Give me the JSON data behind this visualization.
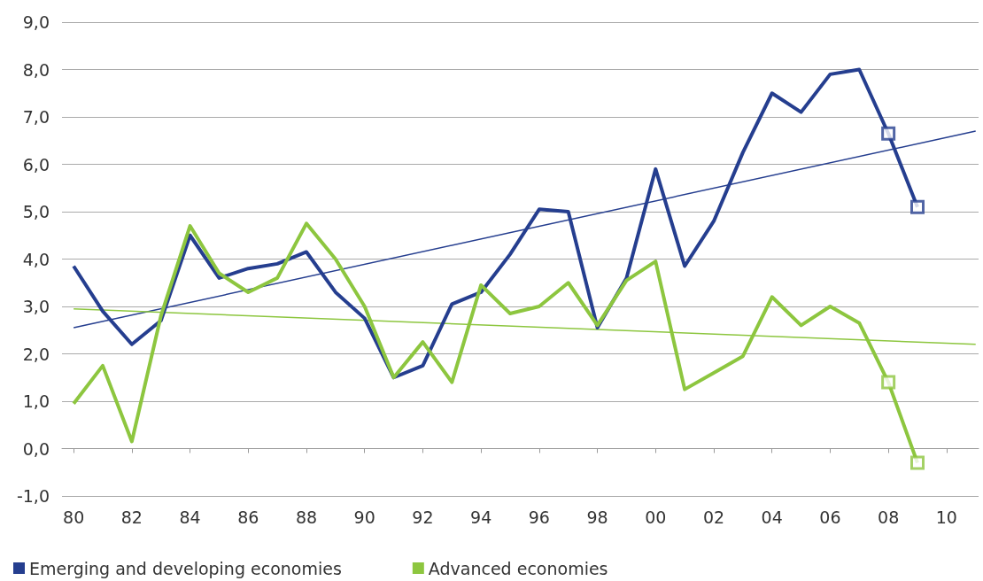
{
  "chart_data": {
    "type": "line",
    "x": [
      1980,
      1981,
      1982,
      1983,
      1984,
      1985,
      1986,
      1987,
      1988,
      1989,
      1990,
      1991,
      1992,
      1993,
      1994,
      1995,
      1996,
      1997,
      1998,
      1999,
      2000,
      2001,
      2002,
      2003,
      2004,
      2005,
      2006,
      2007,
      2008,
      2009
    ],
    "series": [
      {
        "name": "Emerging and developing economies",
        "color": "#253e8f",
        "values": [
          3.85,
          2.9,
          2.2,
          2.7,
          4.5,
          3.6,
          3.8,
          3.9,
          4.15,
          3.3,
          2.75,
          1.5,
          1.75,
          3.05,
          3.3,
          4.1,
          5.05,
          5.0,
          2.55,
          3.6,
          5.9,
          3.85,
          4.8,
          6.25,
          7.5,
          7.1,
          7.9,
          8.0,
          6.65,
          5.1
        ]
      },
      {
        "name": "Advanced economies",
        "color": "#8dc63f",
        "values": [
          0.95,
          1.75,
          0.15,
          2.8,
          4.7,
          3.7,
          3.3,
          3.6,
          4.75,
          4.0,
          3.0,
          1.5,
          2.25,
          1.4,
          3.45,
          2.85,
          3.0,
          3.5,
          2.6,
          3.55,
          3.95,
          1.25,
          1.6,
          1.95,
          3.2,
          2.6,
          3.0,
          2.65,
          1.4,
          -0.3
        ]
      },
      {
        "type": "scatter",
        "marker": "square",
        "color": "#253e8f",
        "x": [
          2008,
          2009
        ],
        "values": [
          6.65,
          5.1
        ]
      },
      {
        "type": "scatter",
        "marker": "square",
        "color": "#8dc63f",
        "x": [
          2008,
          2009
        ],
        "values": [
          1.4,
          -0.3
        ]
      },
      {
        "type": "line",
        "color": "#253e8f",
        "x": [
          1980,
          2011
        ],
        "values": [
          2.55,
          6.7
        ]
      },
      {
        "type": "line",
        "color": "#8dc63f",
        "x": [
          1980,
          2011
        ],
        "values": [
          2.95,
          2.2
        ]
      }
    ],
    "marker": "none",
    "grid": "y",
    "legend": "bottom left",
    "xlim": [
      1979.6,
      2011.1
    ],
    "xticks": [
      {
        "value": 1980,
        "label": "80"
      },
      {
        "value": 1982,
        "label": "82"
      },
      {
        "value": 1984,
        "label": "84"
      },
      {
        "value": 1986,
        "label": "86"
      },
      {
        "value": 1988,
        "label": "88"
      },
      {
        "value": 1990,
        "label": "90"
      },
      {
        "value": 1992,
        "label": "92"
      },
      {
        "value": 1994,
        "label": "94"
      },
      {
        "value": 1996,
        "label": "96"
      },
      {
        "value": 1998,
        "label": "98"
      },
      {
        "value": 2000,
        "label": "00"
      },
      {
        "value": 2002,
        "label": "02"
      },
      {
        "value": 2004,
        "label": "04"
      },
      {
        "value": 2006,
        "label": "06"
      },
      {
        "value": 2008,
        "label": "08"
      },
      {
        "value": 2010,
        "label": "10"
      }
    ],
    "ylim": [
      -1,
      9
    ],
    "yticks": [
      {
        "value": -1,
        "label": "-1,0"
      },
      {
        "value": 0,
        "label": "0,0"
      },
      {
        "value": 1,
        "label": "1,0"
      },
      {
        "value": 2,
        "label": "2,0"
      },
      {
        "value": 3,
        "label": "3,0"
      },
      {
        "value": 4,
        "label": "4,0"
      },
      {
        "value": 5,
        "label": "5,0"
      },
      {
        "value": 6,
        "label": "6,0"
      },
      {
        "value": 7,
        "label": "7,0"
      },
      {
        "value": 8,
        "label": "8,0"
      },
      {
        "value": 9,
        "label": "9,0"
      }
    ]
  }
}
